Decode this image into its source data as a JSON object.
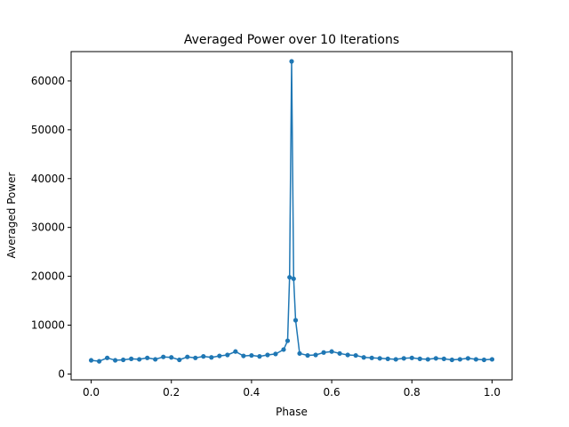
{
  "chart_data": {
    "type": "line",
    "title": "Averaged Power over 10 Iterations",
    "xlabel": "Phase",
    "ylabel": "Averaged Power",
    "xlim": [
      -0.05,
      1.05
    ],
    "ylim": [
      -1200,
      66000
    ],
    "xticks": [
      0.0,
      0.2,
      0.4,
      0.6,
      0.8,
      1.0
    ],
    "xtick_labels": [
      "0.0",
      "0.2",
      "0.4",
      "0.6",
      "0.8",
      "1.0"
    ],
    "yticks": [
      0,
      10000,
      20000,
      30000,
      40000,
      50000,
      60000
    ],
    "ytick_labels": [
      "0",
      "10000",
      "20000",
      "30000",
      "40000",
      "50000",
      "60000"
    ],
    "grid": false,
    "marker": "circle",
    "series": [
      {
        "color": "#1f77b4",
        "x": [
          0.0,
          0.02,
          0.04,
          0.06,
          0.08,
          0.1,
          0.12,
          0.14,
          0.16,
          0.18,
          0.2,
          0.22,
          0.24,
          0.26,
          0.28,
          0.3,
          0.32,
          0.34,
          0.36,
          0.38,
          0.4,
          0.42,
          0.44,
          0.46,
          0.48,
          0.49,
          0.495,
          0.5,
          0.505,
          0.51,
          0.52,
          0.54,
          0.56,
          0.58,
          0.6,
          0.62,
          0.64,
          0.66,
          0.68,
          0.7,
          0.72,
          0.74,
          0.76,
          0.78,
          0.8,
          0.82,
          0.84,
          0.86,
          0.88,
          0.9,
          0.92,
          0.94,
          0.96,
          0.98,
          1.0
        ],
        "y": [
          2800,
          2600,
          3300,
          2800,
          2900,
          3100,
          3000,
          3300,
          3000,
          3500,
          3400,
          2900,
          3500,
          3300,
          3600,
          3400,
          3700,
          3900,
          4600,
          3700,
          3800,
          3600,
          3900,
          4100,
          5000,
          6800,
          19800,
          64000,
          19500,
          11000,
          4200,
          3800,
          3900,
          4400,
          4600,
          4200,
          3900,
          3800,
          3400,
          3300,
          3200,
          3100,
          3000,
          3200,
          3300,
          3100,
          3000,
          3200,
          3100,
          2900,
          3000,
          3200,
          3000,
          2900,
          3000
        ]
      }
    ]
  }
}
